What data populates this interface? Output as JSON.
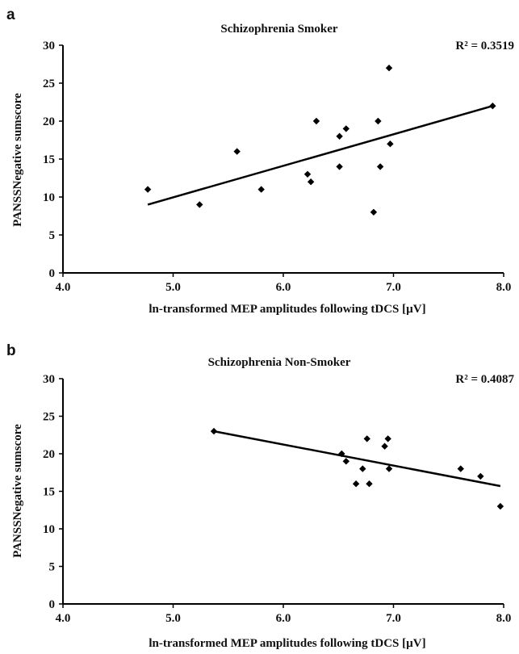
{
  "chart_data": [
    {
      "panel": "a",
      "type": "scatter",
      "title": "Schizophrenia Smoker",
      "annotation": "R² = 0.3519",
      "xlabel": "ln-transformed MEP amplitudes following tDCS [µV]",
      "ylabel": "PANSSNegative sumscore",
      "xlim": [
        4.0,
        8.0
      ],
      "ylim": [
        0,
        30
      ],
      "xticks": [
        "4.0",
        "5.0",
        "6.0",
        "7.0",
        "8.0"
      ],
      "yticks": [
        "0",
        "5",
        "10",
        "15",
        "20",
        "25",
        "30"
      ],
      "grid": false,
      "points": [
        {
          "x": 4.77,
          "y": 11
        },
        {
          "x": 5.24,
          "y": 9
        },
        {
          "x": 5.58,
          "y": 16
        },
        {
          "x": 5.8,
          "y": 11
        },
        {
          "x": 6.22,
          "y": 13
        },
        {
          "x": 6.25,
          "y": 12
        },
        {
          "x": 6.3,
          "y": 20
        },
        {
          "x": 6.51,
          "y": 18
        },
        {
          "x": 6.51,
          "y": 14
        },
        {
          "x": 6.57,
          "y": 19
        },
        {
          "x": 6.82,
          "y": 8
        },
        {
          "x": 6.86,
          "y": 20
        },
        {
          "x": 6.88,
          "y": 14
        },
        {
          "x": 6.96,
          "y": 27
        },
        {
          "x": 6.97,
          "y": 17
        },
        {
          "x": 7.9,
          "y": 22
        }
      ],
      "trendline": [
        {
          "x": 4.77,
          "y": 9
        },
        {
          "x": 7.9,
          "y": 22
        }
      ]
    },
    {
      "panel": "b",
      "type": "scatter",
      "title": "Schizophrenia Non-Smoker",
      "annotation": "R² = 0.4087",
      "xlabel": "ln-transformed MEP amplitudes following tDCS [µV]",
      "ylabel": "PANSSNegative sumscore",
      "xlim": [
        4.0,
        8.0
      ],
      "ylim": [
        0,
        30
      ],
      "xticks": [
        "4.0",
        "5.0",
        "6.0",
        "7.0",
        "8.0"
      ],
      "yticks": [
        "0",
        "5",
        "10",
        "15",
        "20",
        "25",
        "30"
      ],
      "grid": false,
      "points": [
        {
          "x": 5.37,
          "y": 23
        },
        {
          "x": 6.53,
          "y": 20
        },
        {
          "x": 6.57,
          "y": 19
        },
        {
          "x": 6.66,
          "y": 16
        },
        {
          "x": 6.72,
          "y": 18
        },
        {
          "x": 6.76,
          "y": 22
        },
        {
          "x": 6.78,
          "y": 16
        },
        {
          "x": 6.92,
          "y": 21
        },
        {
          "x": 6.95,
          "y": 22
        },
        {
          "x": 6.96,
          "y": 18
        },
        {
          "x": 7.61,
          "y": 18
        },
        {
          "x": 7.79,
          "y": 17
        },
        {
          "x": 7.97,
          "y": 13
        }
      ],
      "trendline": [
        {
          "x": 5.37,
          "y": 23
        },
        {
          "x": 7.97,
          "y": 15.7
        }
      ]
    }
  ]
}
